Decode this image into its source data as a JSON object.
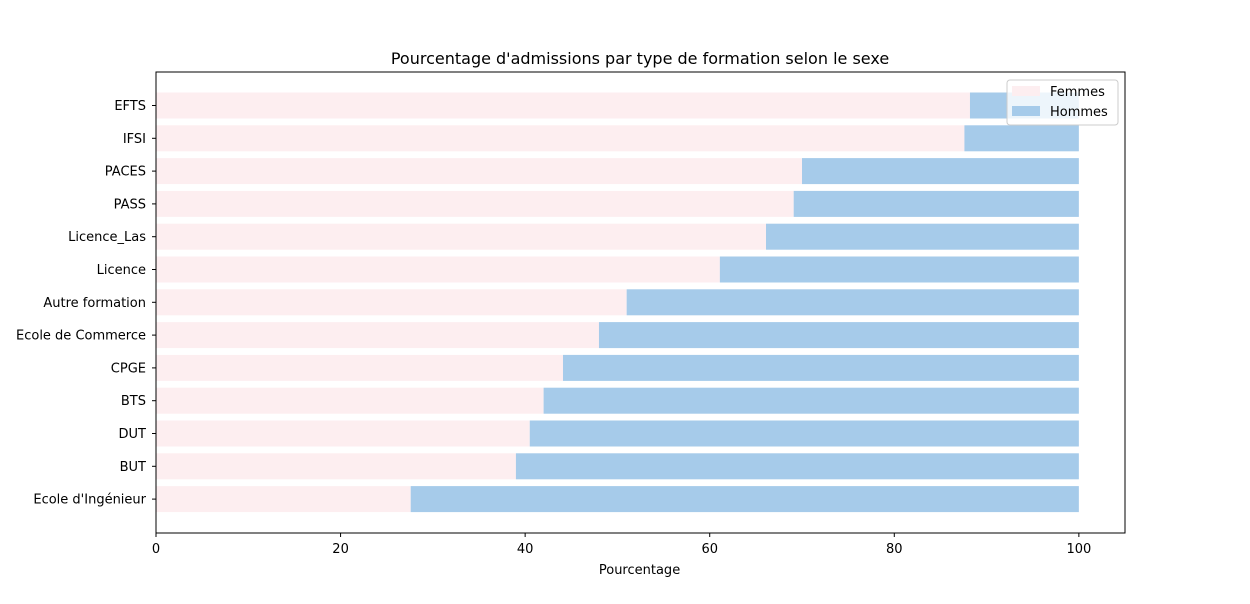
{
  "chart_data": {
    "type": "bar",
    "orientation": "horizontal",
    "stacked": true,
    "title": "Pourcentage d'admissions par type de formation selon le sexe",
    "xlabel": "Pourcentage",
    "ylabel": "",
    "xlim": [
      0,
      105
    ],
    "xticks": [
      0,
      20,
      40,
      60,
      80,
      100
    ],
    "grid": false,
    "legend_position": "top-right",
    "categories": [
      "EFTS",
      "IFSI",
      "PACES",
      "PASS",
      "Licence_Las",
      "Licence",
      "Autre formation",
      "Ecole de Commerce",
      "CPGE",
      "BTS",
      "DUT",
      "BUT",
      "Ecole d'Ingénieur"
    ],
    "series": [
      {
        "name": "Femmes",
        "color": "#fdeef0",
        "values": [
          88.2,
          87.6,
          70.0,
          69.1,
          66.1,
          61.1,
          51.0,
          48.0,
          44.1,
          42.0,
          40.5,
          39.0,
          27.6
        ]
      },
      {
        "name": "Hommes",
        "color": "#a6cbea",
        "values": [
          11.8,
          12.4,
          30.0,
          30.9,
          33.9,
          38.9,
          49.0,
          52.0,
          55.9,
          58.0,
          59.5,
          61.0,
          72.4
        ]
      }
    ]
  }
}
